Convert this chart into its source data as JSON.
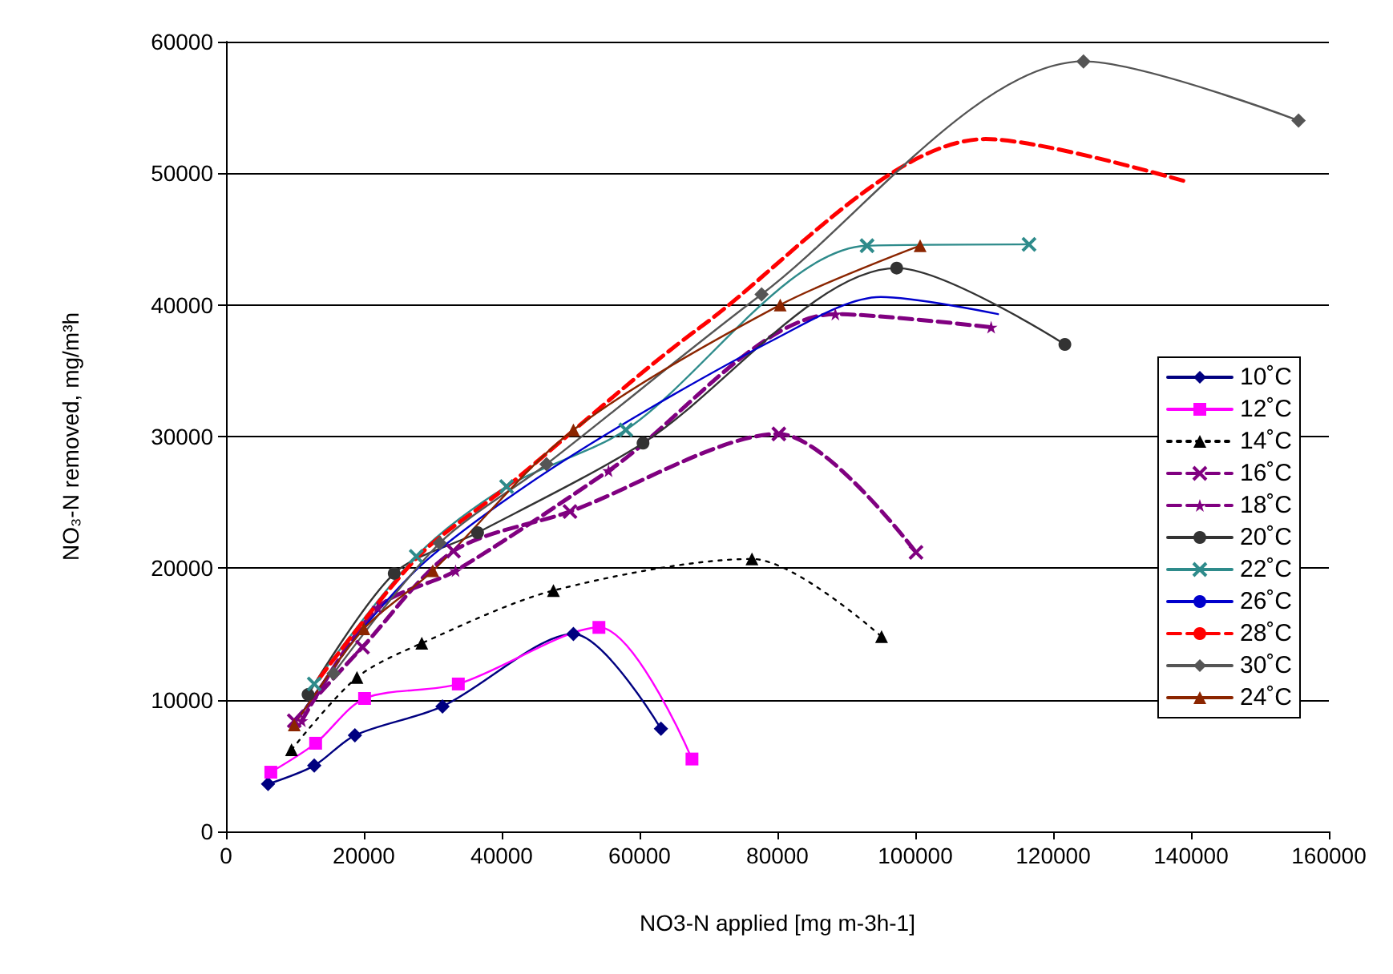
{
  "chart_data": {
    "type": "line",
    "xlabel": "NO3-N applied [mg m-3h-1]",
    "ylabel": "NO₃-N removed, mg/m³h",
    "xlim": [
      0,
      160000
    ],
    "xticks": [
      0,
      20000,
      40000,
      60000,
      80000,
      100000,
      120000,
      140000,
      160000
    ],
    "ylim": [
      0,
      60000
    ],
    "yticks": [
      0,
      10000,
      20000,
      30000,
      40000,
      50000,
      60000
    ],
    "grid": "y",
    "legend": "right",
    "series": [
      {
        "name": "10˚C",
        "color": "#000080",
        "marker": "diamond",
        "line_style": "solid",
        "x": [
          6100,
          12800,
          18700,
          31400,
          50400,
          63100
        ],
        "values": [
          3600,
          5000,
          7300,
          9500,
          15000,
          7800
        ]
      },
      {
        "name": "12˚C",
        "color": "#ff00ff",
        "marker": "square",
        "line_style": "solid",
        "x": [
          6500,
          13000,
          20100,
          33700,
          54100,
          67600
        ],
        "values": [
          4500,
          6700,
          10100,
          11200,
          15500,
          5500
        ]
      },
      {
        "name": "14˚C",
        "color": "#000000",
        "marker": "triangle",
        "line_style": "dotted",
        "x": [
          9500,
          19000,
          28400,
          47500,
          76300,
          95100
        ],
        "values": [
          6200,
          11700,
          14300,
          18300,
          20700,
          14800
        ]
      },
      {
        "name": "16˚C",
        "color": "#800080",
        "marker": "cross",
        "line_style": "dashed",
        "x": [
          9900,
          19800,
          33000,
          49900,
          80200,
          100100
        ],
        "values": [
          8400,
          14000,
          21300,
          24300,
          30200,
          21200
        ]
      },
      {
        "name": "18˚C",
        "color": "#800080",
        "marker": "star",
        "line_style": "dashed",
        "x": [
          11000,
          22000,
          33300,
          55500,
          88400,
          111000
        ],
        "values": [
          8400,
          17000,
          19800,
          27400,
          39300,
          38300
        ]
      },
      {
        "name": "20˚C",
        "color": "#333333",
        "marker": "circle",
        "line_style": "solid",
        "x": [
          11900,
          24400,
          36500,
          60500,
          97300,
          121700
        ],
        "values": [
          10400,
          19600,
          22700,
          29500,
          42800,
          37000
        ]
      },
      {
        "name": "22˚C",
        "color": "#2e8b8b",
        "marker": "cross",
        "line_style": "solid",
        "x": [
          12800,
          27600,
          40700,
          58000,
          93000,
          116500
        ],
        "values": [
          11200,
          20900,
          26200,
          30500,
          44500,
          44600
        ]
      },
      {
        "name": "26˚C",
        "color": "#0000cc",
        "marker": "none",
        "line_style": "solid",
        "x": [
          11000,
          20000,
          30000,
          50000,
          80000,
          95000,
          112000
        ],
        "values": [
          9000,
          15500,
          21000,
          28500,
          37500,
          40600,
          39300
        ]
      },
      {
        "name": "28˚C",
        "color": "#ff0000",
        "marker": "none",
        "line_style": "dashed",
        "x": [
          13500,
          27900,
          40300,
          68800,
          110200,
          139100
        ],
        "values": [
          11600,
          20900,
          26000,
          38300,
          52600,
          49400
        ]
      },
      {
        "name": "30˚C",
        "color": "#555555",
        "marker": "diamond",
        "line_style": "solid",
        "x": [
          15600,
          31000,
          46500,
          77700,
          124400,
          155600
        ],
        "values": [
          12000,
          21900,
          27900,
          40800,
          58500,
          54000
        ]
      },
      {
        "name": "24˚C",
        "color": "#8b2500",
        "marker": "triangle",
        "line_style": "solid",
        "x": [
          9900,
          20000,
          30000,
          50400,
          80400,
          100700
        ],
        "values": [
          8100,
          15400,
          19800,
          30500,
          40000,
          44500
        ]
      }
    ]
  }
}
